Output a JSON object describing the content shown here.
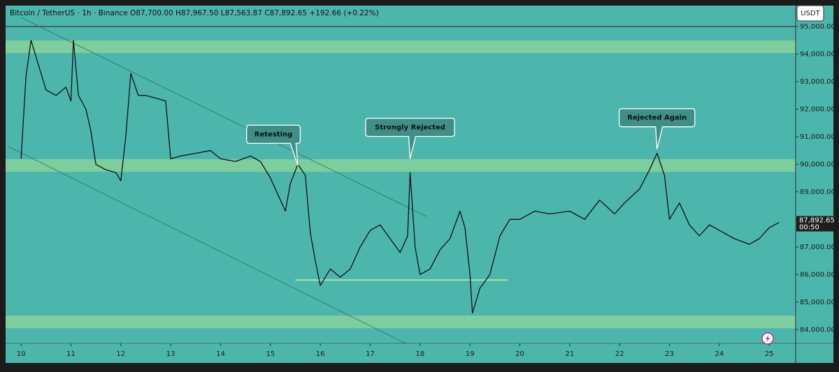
{
  "chart_data": {
    "type": "line",
    "title": "Bitcoin / TetherUS · 1h · Binance O87,700.00 H87,967.50 L87,563.87 C87,892.65 +192.66 (+0.22%)",
    "currency_button": "USDT",
    "color": "#111111",
    "x": [
      10.0,
      10.1,
      10.2,
      10.35,
      10.5,
      10.7,
      10.9,
      11.0,
      11.05,
      11.15,
      11.3,
      11.4,
      11.5,
      11.7,
      11.9,
      12.0,
      12.1,
      12.2,
      12.35,
      12.5,
      12.7,
      12.9,
      13.0,
      13.2,
      13.5,
      13.8,
      14.0,
      14.3,
      14.6,
      14.8,
      15.0,
      15.2,
      15.3,
      15.4,
      15.55,
      15.7,
      15.8,
      15.9,
      16.0,
      16.2,
      16.4,
      16.6,
      16.8,
      17.0,
      17.2,
      17.4,
      17.6,
      17.75,
      17.8,
      17.9,
      18.0,
      18.2,
      18.4,
      18.6,
      18.8,
      18.9,
      19.0,
      19.05,
      19.2,
      19.4,
      19.6,
      19.8,
      20.0,
      20.3,
      20.6,
      21.0,
      21.3,
      21.6,
      21.9,
      22.1,
      22.4,
      22.6,
      22.75,
      22.9,
      23.0,
      23.2,
      23.4,
      23.6,
      23.8,
      24.0,
      24.3,
      24.6,
      24.8,
      25.0,
      25.2
    ],
    "values": [
      90200,
      93200,
      94500,
      93600,
      92700,
      92500,
      92800,
      92300,
      94500,
      92500,
      92000,
      91200,
      90000,
      89800,
      89700,
      89400,
      91000,
      93300,
      92500,
      92500,
      92400,
      92300,
      90200,
      90300,
      90400,
      90500,
      90200,
      90100,
      90300,
      90100,
      89500,
      88700,
      88300,
      89300,
      90000,
      89600,
      87500,
      86500,
      85600,
      86200,
      85900,
      86200,
      87000,
      87600,
      87800,
      87300,
      86800,
      87400,
      89700,
      87000,
      86000,
      86200,
      86900,
      87300,
      88300,
      87700,
      86000,
      84600,
      85500,
      86000,
      87400,
      88000,
      88000,
      88300,
      88200,
      88300,
      88000,
      88700,
      88200,
      88600,
      89100,
      89800,
      90400,
      89600,
      88000,
      88600,
      87800,
      87400,
      87800,
      87600,
      87300,
      87100,
      87300,
      87700,
      87890
    ],
    "xlim": [
      9.69,
      25.53
    ],
    "ylim": [
      83500,
      95760
    ],
    "xticks": [
      10,
      11,
      12,
      13,
      14,
      15,
      16,
      17,
      18,
      19,
      20,
      21,
      22,
      23,
      24,
      25
    ],
    "yticks": [
      {
        "value": 84000,
        "label": "84,000.00"
      },
      {
        "value": 85000,
        "label": "85,000.00"
      },
      {
        "value": 86000,
        "label": "86,000.00"
      },
      {
        "value": 87000,
        "label": "87,000.00"
      },
      {
        "value": 88000,
        "label": "88,000.00"
      },
      {
        "value": 89000,
        "label": "89,000.00"
      },
      {
        "value": 90000,
        "label": "90,000.00"
      },
      {
        "value": 91000,
        "label": "91,000.00"
      },
      {
        "value": 92000,
        "label": "92,000.00"
      },
      {
        "value": 93000,
        "label": "93,000.00"
      },
      {
        "value": 94000,
        "label": "94,000.00"
      },
      {
        "value": 95000,
        "label": "95,000.00"
      }
    ],
    "zones": [
      [
        94037,
        94493
      ],
      [
        89727,
        90184
      ],
      [
        84051,
        84507
      ]
    ],
    "channel_lines": [
      {
        "x": [
          10.0,
          18.13
        ],
        "y": [
          95330,
          88105
        ]
      },
      {
        "x": [
          9.75,
          17.71
        ],
        "y": [
          90640,
          83500
        ]
      }
    ],
    "support_line": {
      "x": [
        15.5,
        19.75
      ],
      "y": [
        85800,
        85800
      ]
    },
    "annotations": [
      {
        "text": "Retesting",
        "x": 15.55,
        "y": 89950
      },
      {
        "text": "Strongly Rejected",
        "x": 17.8,
        "y": 90200
      },
      {
        "text": "Rejected Again",
        "x": 22.75,
        "y": 90550
      }
    ],
    "last_price": {
      "value": 87892.65,
      "label": "87,892.65",
      "countdown": "00:50"
    }
  }
}
